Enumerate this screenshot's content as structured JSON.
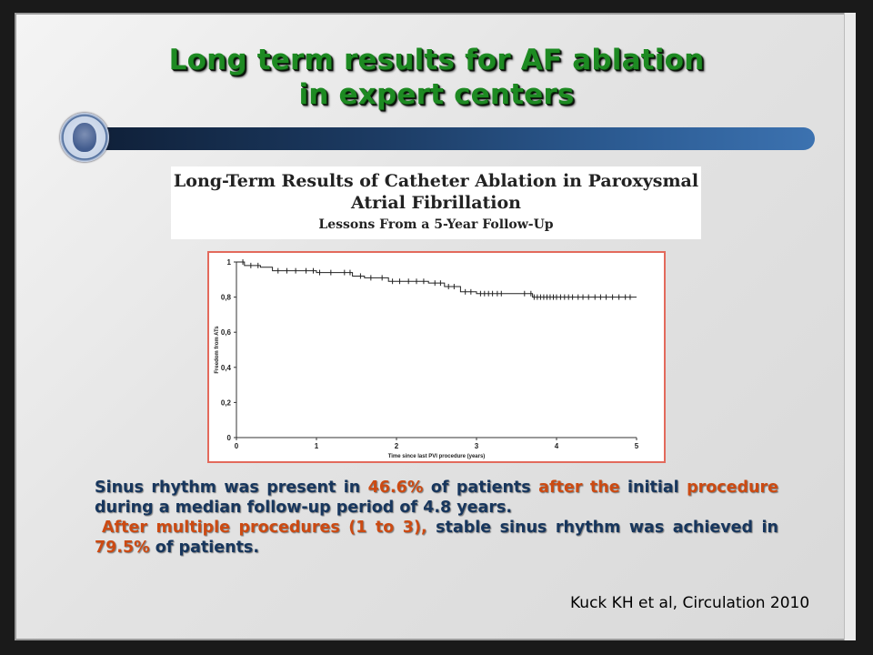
{
  "slide": {
    "title_line1": "Long term results for AF ablation",
    "title_line2": "in expert centers",
    "colors": {
      "title": "#1d8a22",
      "text_blue": "#17365d",
      "highlight": "#cc4a12",
      "chart_border": "#e36a5c"
    },
    "logo": "university-seal-icon"
  },
  "paper": {
    "title": "Long-Term Results of Catheter Ablation in Paroxysmal Atrial Fibrillation",
    "subtitle": "Lessons From a 5-Year Follow-Up"
  },
  "chart_data": {
    "type": "line",
    "title": "",
    "xlabel": "Time since last PVI procedure (years)",
    "ylabel": "Freedom from ATs",
    "xlim": [
      0,
      5
    ],
    "ylim": [
      0,
      1
    ],
    "x_ticks": [
      "0",
      "1",
      "2",
      "3",
      "4",
      "5"
    ],
    "y_ticks": [
      "0",
      "0,2",
      "0,4",
      "0,6",
      "0,8",
      "1"
    ],
    "grid": false,
    "series": [
      {
        "name": "",
        "step": true,
        "x": [
          0,
          0.1,
          0.3,
          0.45,
          1.0,
          1.45,
          1.6,
          1.9,
          2.4,
          2.6,
          2.8,
          3.0,
          3.7,
          5.0
        ],
        "y": [
          1.0,
          0.98,
          0.97,
          0.95,
          0.94,
          0.92,
          0.91,
          0.89,
          0.88,
          0.86,
          0.83,
          0.82,
          0.8,
          0.8
        ],
        "censored_x": [
          0.08,
          0.18,
          0.27,
          0.52,
          0.63,
          0.74,
          0.87,
          0.96,
          1.04,
          1.18,
          1.35,
          1.42,
          1.55,
          1.68,
          1.82,
          1.95,
          2.04,
          2.15,
          2.25,
          2.34,
          2.48,
          2.55,
          2.65,
          2.72,
          2.86,
          2.93,
          3.05,
          3.1,
          3.15,
          3.2,
          3.26,
          3.31,
          3.6,
          3.68,
          3.72,
          3.76,
          3.8,
          3.84,
          3.88,
          3.92,
          3.96,
          4.0,
          4.05,
          4.1,
          4.15,
          4.2,
          4.27,
          4.33,
          4.4,
          4.48,
          4.55,
          4.62,
          4.7,
          4.78,
          4.86,
          4.92
        ]
      }
    ]
  },
  "summary": {
    "p1_a": "Sinus rhythm was present in ",
    "p1_value": "46.6%",
    "p1_b": " of patients ",
    "p1_hl_a": "after the",
    "p1_c": " initial ",
    "p1_hl_b": "procedure",
    "p1_d": " during a median follow-up period of 4.8 years.",
    "p2_hl": "After multiple procedures (1 to 3),",
    "p2_a": " stable sinus rhythm was achieved in ",
    "p2_value": "79.5%",
    "p2_b": " of patients."
  },
  "citation": "Kuck KH et al, Circulation 2010"
}
